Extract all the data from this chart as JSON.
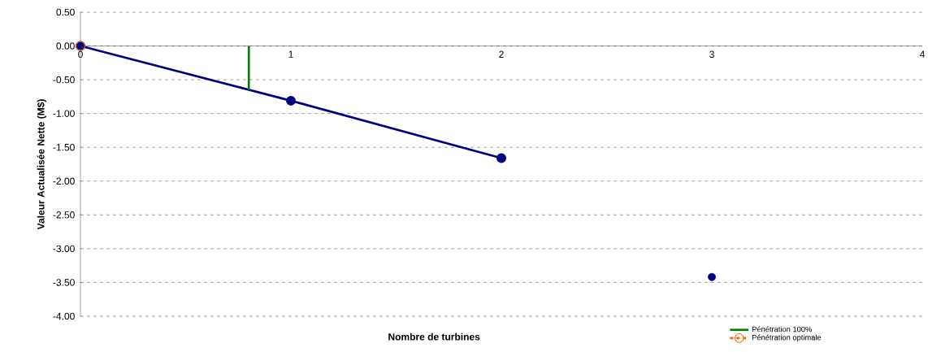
{
  "chart_data": {
    "type": "line",
    "xlabel": "Nombre de turbines",
    "ylabel": "Valeur Actualisée Nette (M$)",
    "xlim": [
      0,
      4
    ],
    "xticks": [
      0,
      1,
      2,
      3,
      4
    ],
    "ylim": [
      -4,
      0.5
    ],
    "yticks": [
      {
        "value": 0.5,
        "label": "0.50"
      },
      {
        "value": 0,
        "label": "0.00"
      },
      {
        "value": -0.5,
        "label": "-0.50"
      },
      {
        "value": -1,
        "label": "-1.00"
      },
      {
        "value": -1.5,
        "label": "-1.50"
      },
      {
        "value": -2,
        "label": "-2.00"
      },
      {
        "value": -2.5,
        "label": "-2.50"
      },
      {
        "value": -3,
        "label": "-3.00"
      },
      {
        "value": -3.5,
        "label": "-3.50"
      },
      {
        "value": -4,
        "label": "-4.00"
      }
    ],
    "grid": "y",
    "legend": "bottom right",
    "series": [
      {
        "color": "#000080",
        "x": [
          0,
          1,
          2
        ],
        "values": [
          0,
          -0.81,
          -1.66
        ],
        "marker": "circle",
        "line_style": "solid"
      },
      {
        "type": "scatter",
        "color": "#000080",
        "x": [
          3
        ],
        "values": [
          -3.42
        ],
        "marker": "circle"
      },
      {
        "type": "line",
        "name": "Pénétration 100%",
        "color": "#008000",
        "x": [
          0.8,
          0.8
        ],
        "values": [
          0,
          -0.65
        ],
        "marker": "none",
        "line_style": "solid"
      },
      {
        "type": "line",
        "name": "Pénétration optimale",
        "color": "#ff6600",
        "x": [
          0
        ],
        "values": [
          0
        ],
        "marker": "circle",
        "line_style": "dashed"
      }
    ]
  }
}
